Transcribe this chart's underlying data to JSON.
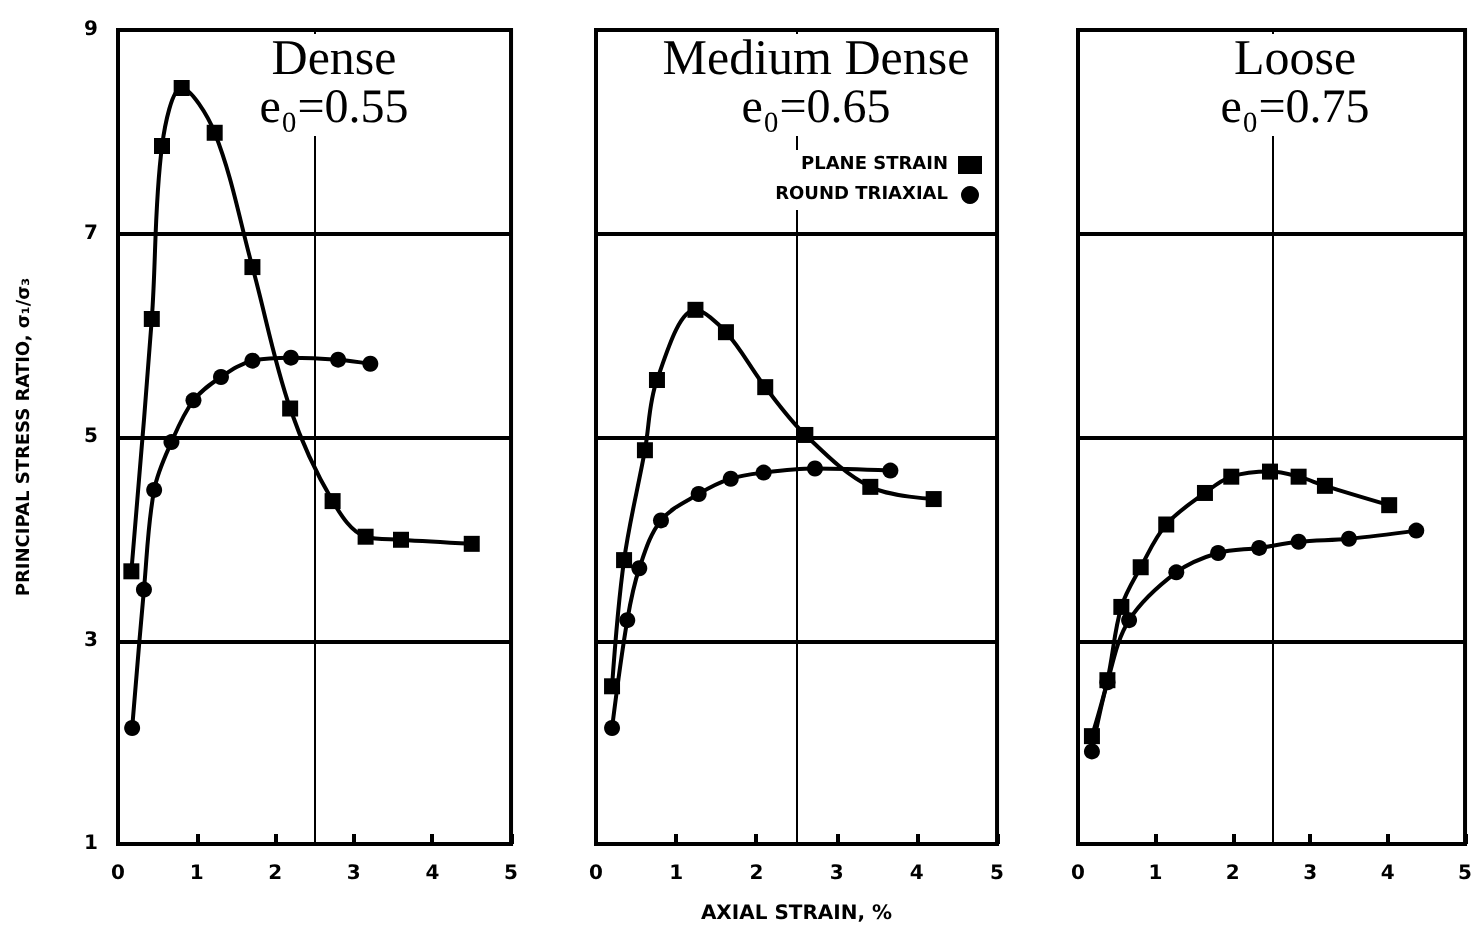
{
  "chart_data": [
    {
      "type": "line",
      "title": "Dense",
      "subtitle": "e₀=0.55",
      "ylabel": "PRINCIPAL STRESS RATIO, σ₁/σ₃",
      "xlim": [
        0,
        5
      ],
      "xticks": [
        0,
        1,
        2,
        3,
        4,
        5
      ],
      "ylim": [
        1,
        9
      ],
      "yticks": [
        1,
        3,
        5,
        7,
        9
      ],
      "grid": "y",
      "legend": false,
      "ref_lines": [
        {
          "axis": "x",
          "value": 2.5
        }
      ],
      "series": [
        {
          "color": "#000000",
          "marker": "square",
          "x": [
            0.17,
            0.43,
            0.56,
            0.81,
            1.23,
            1.71,
            2.19,
            2.73,
            3.15,
            3.6,
            4.5
          ],
          "values": [
            3.68,
            6.16,
            7.86,
            8.43,
            7.99,
            6.67,
            5.28,
            4.37,
            4.02,
            3.99,
            3.95
          ]
        },
        {
          "color": "#000000",
          "marker": "circle",
          "x": [
            0.18,
            0.33,
            0.46,
            0.68,
            0.96,
            1.31,
            1.71,
            2.2,
            2.8,
            3.21
          ],
          "values": [
            2.14,
            3.5,
            4.48,
            4.95,
            5.36,
            5.59,
            5.75,
            5.78,
            5.76,
            5.72
          ]
        }
      ]
    },
    {
      "type": "line",
      "title": "Medium Dense",
      "subtitle": "e₀=0.65",
      "xlabel": "AXIAL STRAIN, %",
      "xlim": [
        0,
        5
      ],
      "xticks": [
        0,
        1,
        2,
        3,
        4,
        5
      ],
      "ylim": [
        1,
        9
      ],
      "yticks": [
        1,
        3,
        5,
        7,
        9
      ],
      "tick_labels": "x",
      "grid": "y",
      "legend": "top right",
      "ref_lines": [
        {
          "axis": "x",
          "value": 2.5
        }
      ],
      "series": [
        {
          "name": "PLANE STRAIN",
          "color": "#000000",
          "marker": "square",
          "x": [
            0.2,
            0.35,
            0.61,
            0.76,
            1.24,
            1.62,
            2.11,
            2.61,
            3.42,
            4.21
          ],
          "values": [
            2.55,
            3.79,
            4.87,
            5.56,
            6.25,
            6.03,
            5.49,
            5.02,
            4.51,
            4.39
          ]
        },
        {
          "name": "ROUND TRIAXIAL",
          "color": "#000000",
          "marker": "circle",
          "x": [
            0.2,
            0.39,
            0.54,
            0.81,
            1.28,
            1.68,
            2.09,
            2.73,
            3.67
          ],
          "values": [
            2.14,
            3.2,
            3.71,
            4.18,
            4.44,
            4.59,
            4.65,
            4.69,
            4.67
          ]
        }
      ]
    },
    {
      "type": "line",
      "title": "Loose",
      "subtitle": "e₀=0.75",
      "xlim": [
        0,
        5
      ],
      "xticks": [
        0,
        1,
        2,
        3,
        4,
        5
      ],
      "ylim": [
        1,
        9
      ],
      "yticks": [
        1,
        3,
        5,
        7,
        9
      ],
      "tick_labels": "x",
      "grid": "y",
      "legend": false,
      "ref_lines": [
        {
          "axis": "x",
          "value": 2.5
        }
      ],
      "series": [
        {
          "color": "#000000",
          "marker": "square",
          "x": [
            0.18,
            0.38,
            0.56,
            0.81,
            1.14,
            1.64,
            1.98,
            2.48,
            2.85,
            3.19,
            4.02
          ],
          "values": [
            2.06,
            2.61,
            3.33,
            3.72,
            4.14,
            4.45,
            4.61,
            4.66,
            4.61,
            4.52,
            4.33
          ]
        },
        {
          "color": "#000000",
          "marker": "circle",
          "x": [
            0.18,
            0.38,
            0.66,
            1.27,
            1.81,
            2.34,
            2.85,
            3.5,
            4.37
          ],
          "values": [
            1.91,
            2.59,
            3.2,
            3.67,
            3.86,
            3.91,
            3.97,
            4.0,
            4.08
          ]
        }
      ]
    }
  ]
}
